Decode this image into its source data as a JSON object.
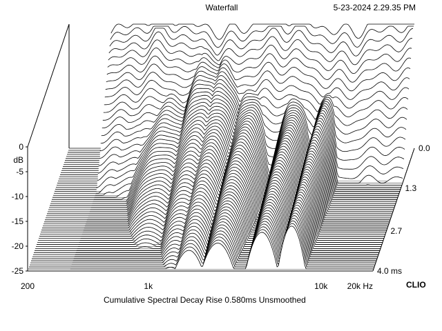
{
  "header": {
    "title": "Waterfall",
    "timestamp": "5-23-2024 2.29.35 PM"
  },
  "footer": {
    "caption": "Cumulative Spectral Decay   Rise 0.580ms   Unsmoothed",
    "brand": "CLIO"
  },
  "chart_data": {
    "type": "waterfall",
    "title": "Waterfall",
    "x_axis": {
      "label": "Hz",
      "scale": "log",
      "range": [
        200,
        20000
      ],
      "ticks": [
        {
          "value": 200,
          "label": "200"
        },
        {
          "value": 1000,
          "label": "1k"
        },
        {
          "value": 10000,
          "label": "10k"
        },
        {
          "value": 20000,
          "label": "20k"
        }
      ],
      "visible_start_hz": 350
    },
    "y_axis": {
      "label": "dB",
      "range": [
        -25,
        0
      ],
      "ticks": [
        0,
        -5,
        -10,
        -15,
        -20,
        -25
      ]
    },
    "z_axis": {
      "label": "ms",
      "range": [
        0,
        4.0
      ],
      "ticks": [
        {
          "value": 0,
          "label": "0.0"
        },
        {
          "value": 1.3,
          "label": "1.3"
        },
        {
          "value": 2.7,
          "label": "2.7"
        },
        {
          "value": 4.0,
          "label": "4.0"
        }
      ]
    },
    "slices": 60,
    "rise_ms": 0.58,
    "smoothing": "Unsmoothed"
  }
}
